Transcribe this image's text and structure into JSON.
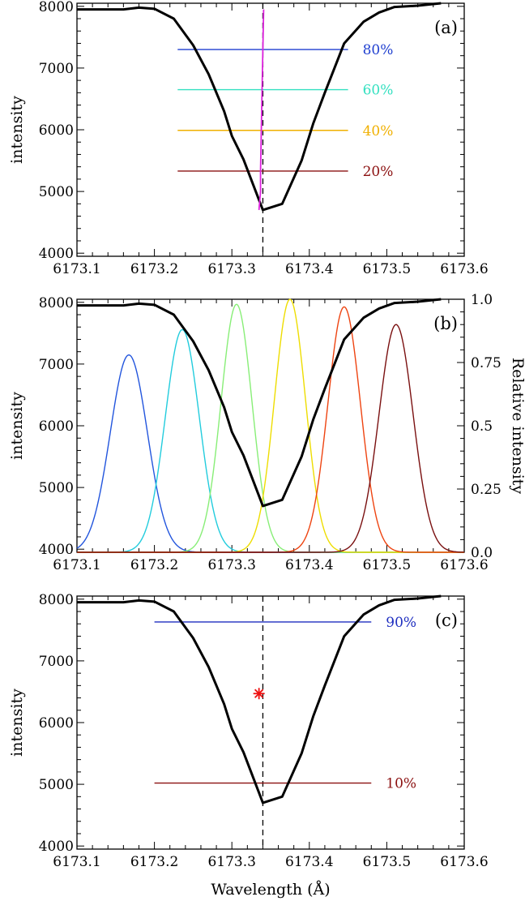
{
  "colors": {
    "profile": "#000000",
    "center_line": "#000000",
    "bisector": "#dd22dd",
    "star": "#ee1111"
  },
  "chart_data": [
    {
      "panel": "(a)",
      "type": "line",
      "xlabel": "",
      "ylabel": "intensity",
      "xlim": [
        6173.1,
        6173.6
      ],
      "ylim": [
        3950,
        8050
      ],
      "x_ticks": [
        "6173.1",
        "6173.2",
        "6173.3",
        "6173.4",
        "6173.5",
        "6173.6"
      ],
      "y_ticks": [
        "4000",
        "5000",
        "6000",
        "7000",
        "8000"
      ],
      "profile": {
        "x": [
          6173.1,
          6173.13,
          6173.16,
          6173.18,
          6173.2,
          6173.225,
          6173.25,
          6173.27,
          6173.29,
          6173.3,
          6173.315,
          6173.34,
          6173.365,
          6173.39,
          6173.405,
          6173.42,
          6173.445,
          6173.47,
          6173.49,
          6173.51,
          6173.54,
          6173.57
        ],
        "y": [
          7950,
          7950,
          7950,
          7980,
          7960,
          7800,
          7370,
          6900,
          6300,
          5900,
          5520,
          4700,
          4800,
          5500,
          6100,
          6600,
          7400,
          7750,
          7900,
          7990,
          8010,
          8050
        ]
      },
      "center_line_x": 6173.34,
      "bisector": {
        "x": [
          6173.335,
          6173.337,
          6173.337,
          6173.338,
          6173.339,
          6173.341
        ],
        "y": [
          4700,
          5000,
          5330,
          6000,
          6650,
          7950
        ]
      },
      "levels": [
        {
          "label": "80%",
          "y": 7300,
          "x_range": [
            6173.23,
            6173.45
          ],
          "color": "#1f3fd0"
        },
        {
          "label": "60%",
          "y": 6650,
          "x_range": [
            6173.23,
            6173.45
          ],
          "color": "#33e0c0"
        },
        {
          "label": "40%",
          "y": 5990,
          "x_range": [
            6173.23,
            6173.45
          ],
          "color": "#f0b000"
        },
        {
          "label": "20%",
          "y": 5330,
          "x_range": [
            6173.23,
            6173.45
          ],
          "color": "#8b1010"
        }
      ]
    },
    {
      "panel": "(b)",
      "type": "line",
      "xlabel": "",
      "ylabel": "intensity",
      "ylabel_right": "Relative intensity",
      "xlim": [
        6173.1,
        6173.6
      ],
      "ylim": [
        3950,
        8050
      ],
      "ylim_right": [
        0.0,
        1.0
      ],
      "x_ticks": [
        "6173.1",
        "6173.2",
        "6173.3",
        "6173.4",
        "6173.5",
        "6173.6"
      ],
      "y_ticks": [
        "4000",
        "5000",
        "6000",
        "7000",
        "8000"
      ],
      "y_ticks_right": [
        "0.0",
        "0.25",
        "0.5",
        "0.75",
        "1.0"
      ],
      "profile": {
        "x": [
          6173.1,
          6173.13,
          6173.16,
          6173.18,
          6173.2,
          6173.225,
          6173.25,
          6173.27,
          6173.29,
          6173.3,
          6173.315,
          6173.34,
          6173.365,
          6173.39,
          6173.405,
          6173.42,
          6173.445,
          6173.47,
          6173.49,
          6173.51,
          6173.54,
          6173.57
        ],
        "y": [
          7950,
          7950,
          7950,
          7980,
          7960,
          7800,
          7370,
          6900,
          6300,
          5900,
          5520,
          4700,
          4800,
          5500,
          6100,
          6600,
          7400,
          7750,
          7900,
          7990,
          8010,
          8050
        ]
      },
      "filters": [
        {
          "center": 6173.167,
          "peak": 0.78,
          "sigma": 0.024,
          "color": "#2255dd"
        },
        {
          "center": 6173.236,
          "peak": 0.88,
          "sigma": 0.022,
          "color": "#22ccdd"
        },
        {
          "center": 6173.306,
          "peak": 0.98,
          "sigma": 0.02,
          "color": "#88ee77"
        },
        {
          "center": 6173.375,
          "peak": 1.0,
          "sigma": 0.02,
          "color": "#eedd00"
        },
        {
          "center": 6173.445,
          "peak": 0.97,
          "sigma": 0.021,
          "color": "#ee4411"
        },
        {
          "center": 6173.512,
          "peak": 0.9,
          "sigma": 0.022,
          "color": "#7a1010"
        }
      ]
    },
    {
      "panel": "(c)",
      "type": "line",
      "xlabel": "Wavelength (Å)",
      "ylabel": "intensity",
      "xlim": [
        6173.1,
        6173.6
      ],
      "ylim": [
        3950,
        8050
      ],
      "x_ticks": [
        "6173.1",
        "6173.2",
        "6173.3",
        "6173.4",
        "6173.5",
        "6173.6"
      ],
      "y_ticks": [
        "4000",
        "5000",
        "6000",
        "7000",
        "8000"
      ],
      "profile": {
        "x": [
          6173.1,
          6173.13,
          6173.16,
          6173.18,
          6173.2,
          6173.225,
          6173.25,
          6173.27,
          6173.29,
          6173.3,
          6173.315,
          6173.34,
          6173.365,
          6173.39,
          6173.405,
          6173.42,
          6173.445,
          6173.47,
          6173.49,
          6173.51,
          6173.54,
          6173.57
        ],
        "y": [
          7950,
          7950,
          7950,
          7980,
          7960,
          7800,
          7370,
          6900,
          6300,
          5900,
          5520,
          4700,
          4800,
          5500,
          6100,
          6600,
          7400,
          7750,
          7900,
          7990,
          8010,
          8050
        ]
      },
      "center_line_x": 6173.34,
      "star": {
        "x": 6173.335,
        "y": 6470
      },
      "levels": [
        {
          "label": "90%",
          "y": 7630,
          "x_range": [
            6173.2,
            6173.48
          ],
          "color": "#1f2fc0"
        },
        {
          "label": "10%",
          "y": 5020,
          "x_range": [
            6173.2,
            6173.48
          ],
          "color": "#8b1010"
        }
      ]
    }
  ]
}
